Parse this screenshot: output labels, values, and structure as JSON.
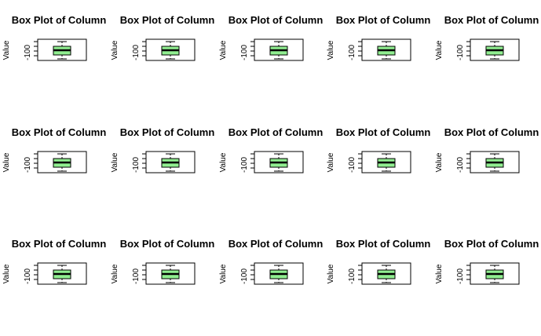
{
  "chart_data": [
    {
      "type": "box",
      "title": "Box Plot of Column",
      "ylabel": "Value",
      "ytick_labels": [
        "-100"
      ],
      "box": {
        "color": "#90ee90"
      }
    },
    {
      "type": "box",
      "title": "Box Plot of Column",
      "ylabel": "Value",
      "ytick_labels": [
        "-100"
      ],
      "box": {
        "color": "#90ee90"
      }
    },
    {
      "type": "box",
      "title": "Box Plot of Column",
      "ylabel": "Value",
      "ytick_labels": [
        "-100"
      ],
      "box": {
        "color": "#90ee90"
      }
    },
    {
      "type": "box",
      "title": "Box Plot of Column",
      "ylabel": "Value",
      "ytick_labels": [
        "-100"
      ],
      "box": {
        "color": "#90ee90"
      }
    },
    {
      "type": "box",
      "title": "Box Plot of Column",
      "ylabel": "Value",
      "ytick_labels": [
        "-100"
      ],
      "box": {
        "color": "#90ee90"
      }
    },
    {
      "type": "box",
      "title": "Box Plot of Column",
      "ylabel": "Value",
      "ytick_labels": [
        "-100"
      ],
      "box": {
        "color": "#90ee90"
      }
    },
    {
      "type": "box",
      "title": "Box Plot of Column",
      "ylabel": "Value",
      "ytick_labels": [
        "-100"
      ],
      "box": {
        "color": "#90ee90"
      }
    },
    {
      "type": "box",
      "title": "Box Plot of Column",
      "ylabel": "Value",
      "ytick_labels": [
        "-100"
      ],
      "box": {
        "color": "#90ee90"
      }
    },
    {
      "type": "box",
      "title": "Box Plot of Column",
      "ylabel": "Value",
      "ytick_labels": [
        "-100"
      ],
      "box": {
        "color": "#90ee90"
      }
    },
    {
      "type": "box",
      "title": "Box Plot of Column",
      "ylabel": "Value",
      "ytick_labels": [
        "-100"
      ],
      "box": {
        "color": "#90ee90"
      }
    },
    {
      "type": "box",
      "title": "Box Plot of Column",
      "ylabel": "Value",
      "ytick_labels": [
        "-100"
      ],
      "box": {
        "color": "#90ee90"
      }
    },
    {
      "type": "box",
      "title": "Box Plot of Column",
      "ylabel": "Value",
      "ytick_labels": [
        "-100"
      ],
      "box": {
        "color": "#90ee90"
      }
    },
    {
      "type": "box",
      "title": "Box Plot of Column",
      "ylabel": "Value",
      "ytick_labels": [
        "-100"
      ],
      "box": {
        "color": "#90ee90"
      }
    },
    {
      "type": "box",
      "title": "Box Plot of Column",
      "ylabel": "Value",
      "ytick_labels": [
        "-100"
      ],
      "box": {
        "color": "#90ee90"
      }
    },
    {
      "type": "box",
      "title": "Box Plot of Column",
      "ylabel": "Value",
      "ytick_labels": [
        "-100"
      ],
      "box": {
        "color": "#90ee90"
      }
    }
  ]
}
